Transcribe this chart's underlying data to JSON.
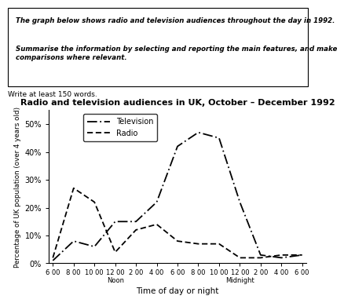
{
  "title": "Radio and television audiences in UK, October – December 1992",
  "xlabel": "Time of day or night",
  "ylabel": "Percentage of UK population (over 4 years old)",
  "prompt_line1": "The graph below shows radio and television audiences throughout the day in 1992.",
  "prompt_line2": "Summarise the information by selecting and reporting the main features, and make\ncomparisons where relevant.",
  "write_note": "Write at least 150 words.",
  "x_tick_labels": [
    "6 00",
    "8 00",
    "10 00",
    "12 00\nNoon",
    "2 00",
    "4 00",
    "6 00",
    "8 00",
    "10 00",
    "12 00\nMidnight",
    "2 00",
    "4 00",
    "6 00"
  ],
  "tv_data": [
    1,
    8,
    6,
    15,
    15,
    22,
    42,
    47,
    45,
    22,
    3,
    2,
    3
  ],
  "radio_data": [
    2,
    27,
    22,
    4,
    12,
    14,
    8,
    7,
    7,
    2,
    2,
    3,
    3
  ],
  "ylim": [
    0,
    55
  ],
  "yticks": [
    0,
    10,
    20,
    30,
    40,
    50
  ],
  "ytick_labels": [
    "0%",
    "10%",
    "20%",
    "30%",
    "40%",
    "50%"
  ]
}
